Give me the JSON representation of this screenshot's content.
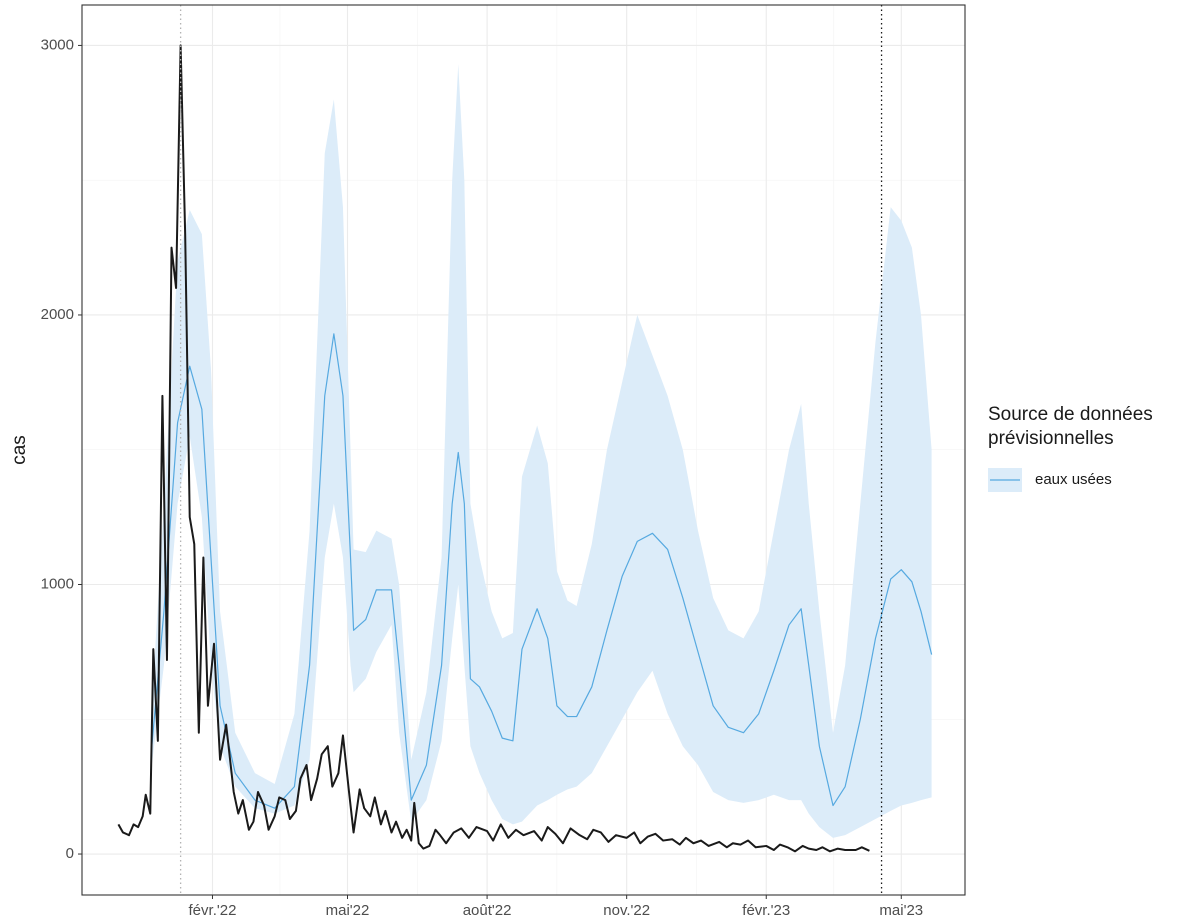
{
  "chart_data": {
    "type": "line",
    "y_label": "cas",
    "legend_title": "Source de données prévisionnelles",
    "legend_position": "right",
    "grid": true,
    "xlim": [
      "2021-11-07",
      "2023-06-12"
    ],
    "ylim": [
      -152,
      3150
    ],
    "yticks": [
      0,
      1000,
      2000,
      3000
    ],
    "xticks": [
      {
        "value": "2022-02-01",
        "label": "févr.'22"
      },
      {
        "value": "2022-05-01",
        "label": "mai'22"
      },
      {
        "value": "2022-08-01",
        "label": "août'22"
      },
      {
        "value": "2022-11-01",
        "label": "nov.'22"
      },
      {
        "value": "2023-02-01",
        "label": "févr.'23"
      },
      {
        "value": "2023-05-01",
        "label": "mai'23"
      }
    ],
    "vlines": [
      {
        "x": "2022-01-11",
        "color": "#b3b3b3"
      },
      {
        "x": "2023-04-18",
        "color": "#1a1a1a"
      }
    ],
    "series": [
      {
        "color": "#1a1a1a",
        "x": [
          "2021-12-01",
          "2021-12-04",
          "2021-12-08",
          "2021-12-11",
          "2021-12-14",
          "2021-12-17",
          "2021-12-19",
          "2021-12-22",
          "2021-12-24",
          "2021-12-27",
          "2021-12-30",
          "2022-01-02",
          "2022-01-05",
          "2022-01-08",
          "2022-01-11",
          "2022-01-14",
          "2022-01-17",
          "2022-01-20",
          "2022-01-23",
          "2022-01-26",
          "2022-01-29",
          "2022-02-02",
          "2022-02-06",
          "2022-02-10",
          "2022-02-15",
          "2022-02-18",
          "2022-02-21",
          "2022-02-25",
          "2022-02-28",
          "2022-03-03",
          "2022-03-07",
          "2022-03-10",
          "2022-03-14",
          "2022-03-17",
          "2022-03-21",
          "2022-03-24",
          "2022-03-28",
          "2022-03-31",
          "2022-04-04",
          "2022-04-07",
          "2022-04-11",
          "2022-04-14",
          "2022-04-18",
          "2022-04-21",
          "2022-04-25",
          "2022-04-28",
          "2022-05-02",
          "2022-05-05",
          "2022-05-09",
          "2022-05-12",
          "2022-05-16",
          "2022-05-19",
          "2022-05-23",
          "2022-05-26",
          "2022-05-30",
          "2022-06-02",
          "2022-06-06",
          "2022-06-09",
          "2022-06-12",
          "2022-06-14",
          "2022-06-17",
          "2022-06-20",
          "2022-06-24",
          "2022-06-28",
          "2022-07-01",
          "2022-07-05",
          "2022-07-10",
          "2022-07-15",
          "2022-07-20",
          "2022-07-25",
          "2022-08-01",
          "2022-08-05",
          "2022-08-10",
          "2022-08-15",
          "2022-08-20",
          "2022-08-25",
          "2022-09-01",
          "2022-09-06",
          "2022-09-10",
          "2022-09-15",
          "2022-09-20",
          "2022-09-25",
          "2022-10-01",
          "2022-10-06",
          "2022-10-10",
          "2022-10-15",
          "2022-10-20",
          "2022-10-25",
          "2022-11-01",
          "2022-11-06",
          "2022-11-10",
          "2022-11-15",
          "2022-11-20",
          "2022-11-25",
          "2022-12-01",
          "2022-12-06",
          "2022-12-10",
          "2022-12-15",
          "2022-12-20",
          "2022-12-25",
          "2023-01-01",
          "2023-01-06",
          "2023-01-10",
          "2023-01-15",
          "2023-01-20",
          "2023-01-25",
          "2023-02-01",
          "2023-02-06",
          "2023-02-10",
          "2023-02-15",
          "2023-02-20",
          "2023-02-25",
          "2023-03-01",
          "2023-03-06",
          "2023-03-10",
          "2023-03-15",
          "2023-03-20",
          "2023-03-25",
          "2023-04-01",
          "2023-04-05",
          "2023-04-10"
        ],
        "values": [
          110,
          80,
          70,
          110,
          100,
          140,
          220,
          150,
          760,
          420,
          1700,
          720,
          2250,
          2100,
          3000,
          2300,
          1250,
          1150,
          450,
          1100,
          550,
          780,
          350,
          480,
          230,
          150,
          200,
          90,
          120,
          230,
          180,
          90,
          140,
          210,
          200,
          130,
          160,
          280,
          330,
          200,
          280,
          370,
          400,
          250,
          300,
          440,
          230,
          80,
          240,
          170,
          140,
          210,
          110,
          160,
          80,
          120,
          60,
          90,
          50,
          190,
          40,
          20,
          30,
          90,
          70,
          40,
          80,
          95,
          60,
          100,
          85,
          50,
          110,
          60,
          90,
          70,
          85,
          50,
          100,
          75,
          40,
          95,
          70,
          55,
          90,
          80,
          45,
          70,
          60,
          80,
          40,
          65,
          75,
          50,
          55,
          35,
          60,
          40,
          50,
          30,
          45,
          25,
          40,
          35,
          50,
          25,
          30,
          15,
          35,
          25,
          10,
          30,
          20,
          15,
          25,
          10,
          20,
          15,
          15,
          25,
          12
        ]
      },
      {
        "name": "eaux usées",
        "color": "#56a9e0",
        "band_color": "#dcecf9",
        "x": [
          "2021-12-23",
          "2021-12-31",
          "2022-01-09",
          "2022-01-17",
          "2022-01-25",
          "2022-01-31",
          "2022-02-06",
          "2022-02-16",
          "2022-03-01",
          "2022-03-14",
          "2022-03-27",
          "2022-04-06",
          "2022-04-16",
          "2022-04-22",
          "2022-04-28",
          "2022-05-03",
          "2022-05-05",
          "2022-05-13",
          "2022-05-20",
          "2022-05-30",
          "2022-06-04",
          "2022-06-12",
          "2022-06-22",
          "2022-07-02",
          "2022-07-09",
          "2022-07-13",
          "2022-07-17",
          "2022-07-21",
          "2022-07-27",
          "2022-08-04",
          "2022-08-11",
          "2022-08-18",
          "2022-08-24",
          "2022-09-03",
          "2022-09-10",
          "2022-09-16",
          "2022-09-23",
          "2022-09-29",
          "2022-10-09",
          "2022-10-19",
          "2022-10-29",
          "2022-11-08",
          "2022-11-18",
          "2022-11-28",
          "2022-12-08",
          "2022-12-18",
          "2022-12-28",
          "2023-01-07",
          "2023-01-17",
          "2023-01-27",
          "2023-02-06",
          "2023-02-16",
          "2023-02-24",
          "2023-03-01",
          "2023-03-08",
          "2023-03-17",
          "2023-03-25",
          "2023-04-04",
          "2023-04-14",
          "2023-04-24",
          "2023-05-01",
          "2023-05-08",
          "2023-05-14",
          "2023-05-21"
        ],
        "values": [
          400,
          900,
          1600,
          1810,
          1650,
          1100,
          550,
          300,
          200,
          170,
          250,
          700,
          1700,
          1930,
          1700,
          1100,
          830,
          870,
          980,
          980,
          700,
          200,
          330,
          700,
          1300,
          1490,
          1300,
          650,
          620,
          530,
          430,
          420,
          760,
          910,
          800,
          550,
          510,
          510,
          620,
          830,
          1030,
          1160,
          1190,
          1130,
          950,
          750,
          550,
          470,
          450,
          520,
          680,
          850,
          910,
          700,
          400,
          180,
          250,
          500,
          800,
          1020,
          1055,
          1010,
          900,
          740
        ],
        "lower": [
          330,
          700,
          1300,
          1550,
          1250,
          700,
          400,
          250,
          170,
          150,
          180,
          350,
          1100,
          1300,
          1100,
          700,
          600,
          650,
          750,
          850,
          450,
          120,
          200,
          420,
          800,
          1000,
          700,
          400,
          300,
          200,
          130,
          110,
          120,
          180,
          200,
          220,
          240,
          250,
          300,
          400,
          500,
          600,
          680,
          520,
          400,
          330,
          230,
          200,
          190,
          200,
          220,
          200,
          200,
          150,
          100,
          60,
          70,
          100,
          130,
          160,
          180,
          190,
          200,
          210
        ],
        "upper": [
          550,
          1300,
          2200,
          2390,
          2300,
          1800,
          900,
          450,
          300,
          260,
          520,
          1200,
          2600,
          2800,
          2400,
          1500,
          1130,
          1120,
          1200,
          1170,
          1000,
          350,
          600,
          1100,
          2500,
          2930,
          2500,
          1300,
          1100,
          900,
          800,
          820,
          1400,
          1590,
          1450,
          1050,
          940,
          920,
          1150,
          1500,
          1750,
          2000,
          1850,
          1700,
          1500,
          1200,
          950,
          830,
          800,
          900,
          1200,
          1500,
          1670,
          1300,
          900,
          450,
          700,
          1300,
          1900,
          2400,
          2350,
          2250,
          2000,
          1500
        ]
      }
    ]
  }
}
